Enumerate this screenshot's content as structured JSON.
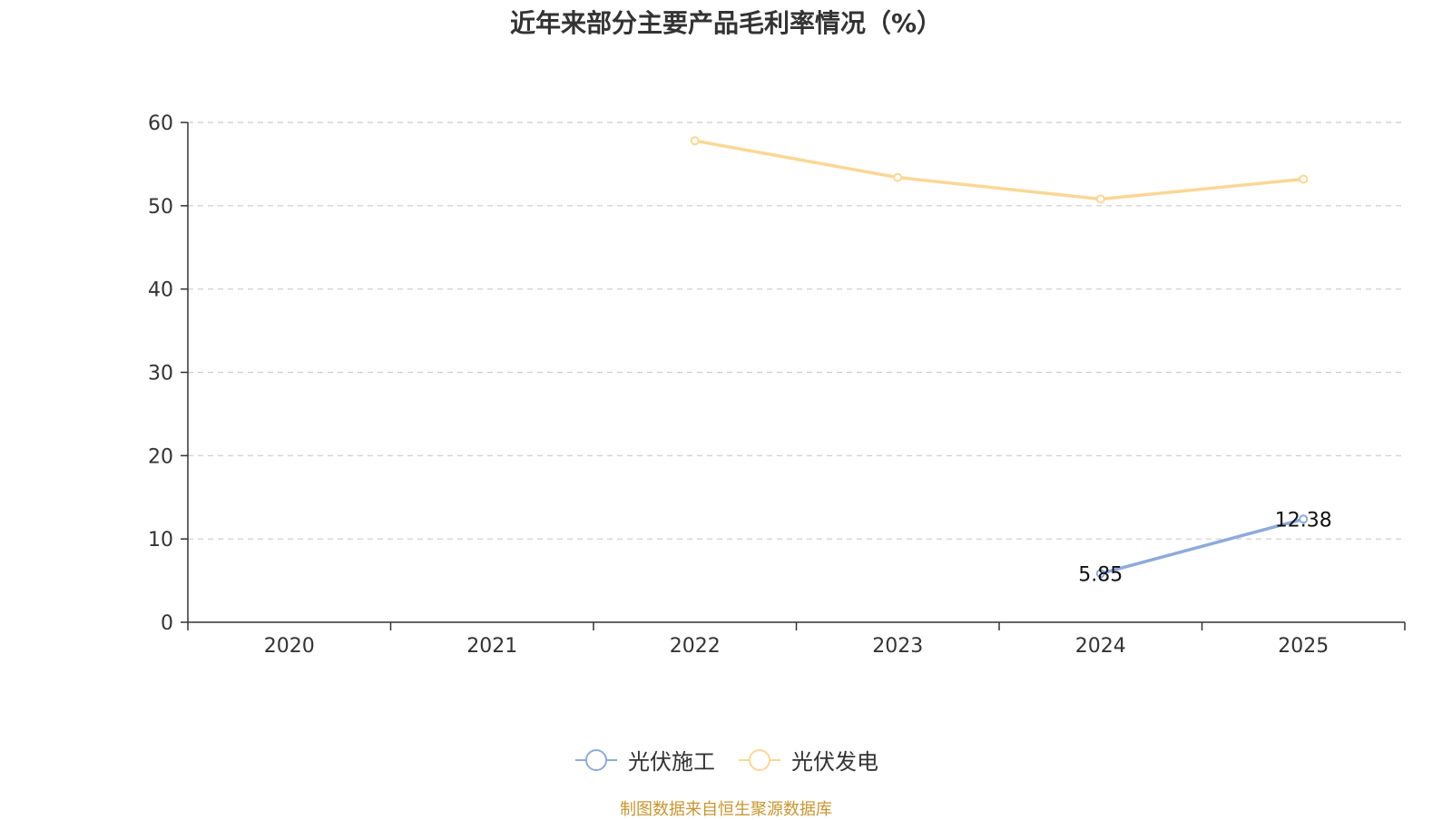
{
  "chart_data": {
    "type": "line",
    "title": "近年来部分主要产品毛利率情况（%）",
    "categories": [
      "2020",
      "2021",
      "2022",
      "2023",
      "2024",
      "2025"
    ],
    "ylim": [
      0,
      60
    ],
    "yticks": [
      0,
      10,
      20,
      30,
      40,
      50,
      60
    ],
    "grid": true,
    "legend_position": "bottom",
    "series": [
      {
        "name": "光伏施工",
        "color": "#8eaadb",
        "values": [
          null,
          null,
          null,
          null,
          5.85,
          12.38
        ],
        "labels": [
          "",
          "",
          "",
          "",
          "5.85",
          "12.38"
        ]
      },
      {
        "name": "光伏发电",
        "color": "#fbd794",
        "values": [
          null,
          null,
          57.8,
          53.4,
          50.8,
          53.2
        ],
        "labels": [
          "",
          "",
          "",
          "",
          "",
          ""
        ]
      }
    ]
  },
  "source_note": "制图数据来自恒生聚源数据库"
}
